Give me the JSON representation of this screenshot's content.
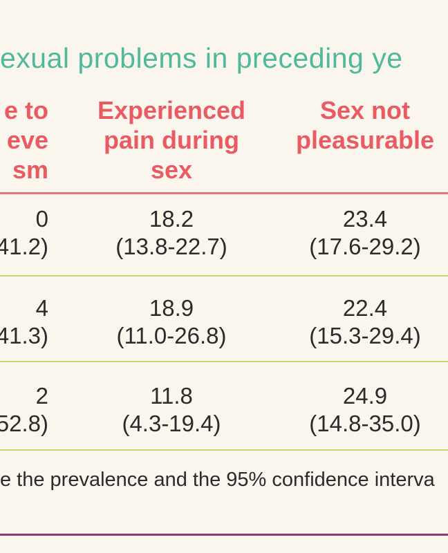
{
  "title": "exual problems in preceding ye",
  "columns": [
    {
      "header": "e to\neve\nsm"
    },
    {
      "header": "Experienced\npain during\nsex"
    },
    {
      "header": "Sex not\npleasurable"
    }
  ],
  "rows": [
    {
      "cells": [
        {
          "value": "0",
          "ci": "41.2)"
        },
        {
          "value": "18.2",
          "ci": "(13.8-22.7)"
        },
        {
          "value": "23.4",
          "ci": "(17.6-29.2)"
        }
      ]
    },
    {
      "cells": [
        {
          "value": "4",
          "ci": "41.3)"
        },
        {
          "value": "18.9",
          "ci": "(11.0-26.8)"
        },
        {
          "value": "22.4",
          "ci": "(15.3-29.4)"
        }
      ]
    },
    {
      "cells": [
        {
          "value": "2",
          "ci": "52.8)"
        },
        {
          "value": "11.8",
          "ci": "(4.3-19.4)"
        },
        {
          "value": "24.9",
          "ci": "(14.8-35.0)"
        }
      ]
    }
  ],
  "footnote": "e the prevalence and the 95% confidence interva",
  "colors": {
    "title": "#4fb99a",
    "header": "#ea5a62",
    "row_rule": "#c9d36b",
    "bottom_rule": "#8a3b6a"
  }
}
